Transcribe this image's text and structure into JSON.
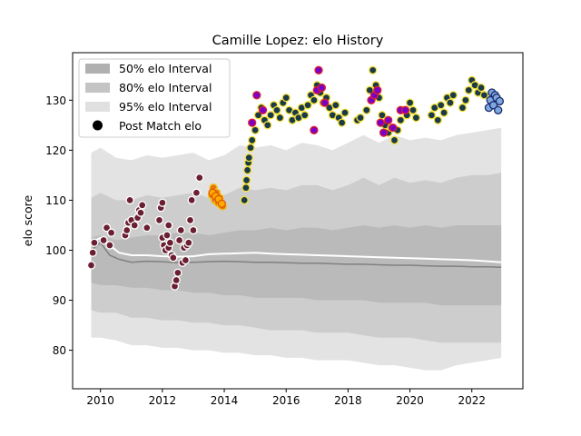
{
  "chart_data": {
    "type": "scatter",
    "title": "Camille Lopez: elo History",
    "xlabel": "",
    "ylabel": "elo score",
    "xlim": [
      2009.1,
      2023.65
    ],
    "ylim": [
      72.3,
      139.5
    ],
    "xticks": [
      2010,
      2012,
      2014,
      2016,
      2018,
      2020,
      2022
    ],
    "yticks": [
      80,
      90,
      100,
      110,
      120,
      130
    ],
    "grid": false,
    "legend": {
      "placement": "top-left",
      "entries": [
        "50% elo Interval",
        "80% elo Interval",
        "95% elo Interval",
        "Post Match elo"
      ]
    },
    "bands": {
      "x": [
        2009.7,
        2010.0,
        2010.5,
        2011.0,
        2011.5,
        2012.0,
        2012.5,
        2013.0,
        2013.5,
        2014.0,
        2014.5,
        2015.0,
        2015.5,
        2016.0,
        2016.5,
        2017.0,
        2017.5,
        2018.0,
        2018.5,
        2019.0,
        2019.5,
        2020.0,
        2020.5,
        2021.0,
        2021.5,
        2022.0,
        2022.5,
        2022.95
      ],
      "p95_upper": [
        119.5,
        120.5,
        118.5,
        118.0,
        119.0,
        118.5,
        119.0,
        119.5,
        118.0,
        119.0,
        121.0,
        120.5,
        121.0,
        120.0,
        121.5,
        121.0,
        120.0,
        121.5,
        123.0,
        121.5,
        123.0,
        122.0,
        122.5,
        122.0,
        123.0,
        123.5,
        124.0,
        124.5
      ],
      "p80_upper": [
        110.5,
        111.5,
        110.0,
        110.0,
        111.0,
        110.5,
        111.0,
        111.5,
        110.5,
        111.0,
        112.5,
        112.0,
        112.5,
        112.0,
        113.0,
        113.0,
        112.0,
        113.0,
        114.5,
        113.0,
        114.5,
        113.5,
        114.0,
        113.5,
        114.5,
        115.0,
        115.0,
        115.5
      ],
      "p50_upper": [
        102.5,
        103.0,
        102.0,
        102.5,
        103.0,
        103.0,
        103.5,
        103.5,
        103.0,
        103.5,
        104.0,
        104.0,
        104.5,
        104.0,
        104.5,
        104.5,
        104.0,
        104.5,
        105.0,
        104.5,
        105.0,
        104.5,
        105.0,
        104.5,
        105.0,
        105.0,
        105.0,
        105.0
      ],
      "p50_lower": [
        93.5,
        93.0,
        93.0,
        92.5,
        92.5,
        92.0,
        92.0,
        91.5,
        91.5,
        91.0,
        91.0,
        90.5,
        90.5,
        90.5,
        90.5,
        90.0,
        90.0,
        90.0,
        90.0,
        89.5,
        89.5,
        89.5,
        89.5,
        89.0,
        89.0,
        89.0,
        89.0,
        89.0
      ],
      "p80_lower": [
        88.0,
        87.5,
        87.5,
        86.5,
        86.5,
        86.0,
        86.0,
        85.5,
        85.5,
        85.0,
        85.0,
        84.5,
        84.0,
        84.0,
        84.0,
        83.5,
        83.5,
        83.5,
        83.0,
        82.5,
        82.5,
        82.5,
        82.0,
        81.5,
        81.5,
        81.5,
        81.5,
        81.5
      ],
      "p95_lower": [
        82.5,
        82.5,
        82.0,
        81.0,
        81.0,
        80.5,
        80.5,
        80.0,
        80.0,
        79.5,
        79.5,
        79.0,
        79.0,
        78.5,
        78.5,
        78.0,
        78.0,
        78.0,
        77.5,
        77.0,
        77.0,
        76.5,
        76.0,
        76.0,
        77.0,
        77.5,
        78.0,
        78.5
      ]
    },
    "lines": {
      "mean": {
        "color": "#ffffff",
        "x": [
          2009.7,
          2010.0,
          2010.3,
          2010.6,
          2011.0,
          2011.5,
          2012.0,
          2012.5,
          2013.0,
          2013.5,
          2014.0,
          2014.5,
          2015.0,
          2015.5,
          2016.0,
          2016.5,
          2017.0,
          2017.5,
          2018.0,
          2018.5,
          2019.0,
          2019.5,
          2020.0,
          2020.5,
          2021.0,
          2021.5,
          2022.0,
          2022.5,
          2022.95
        ],
        "y": [
          101.5,
          102.5,
          101.0,
          99.5,
          99.0,
          99.0,
          98.8,
          98.7,
          98.8,
          99.2,
          99.3,
          99.4,
          99.5,
          99.3,
          99.2,
          99.1,
          99.0,
          98.9,
          98.8,
          98.7,
          98.6,
          98.5,
          98.4,
          98.3,
          98.2,
          98.1,
          98.0,
          97.8,
          97.6
        ]
      },
      "median": {
        "color": "#808080",
        "x": [
          2009.7,
          2010.0,
          2010.3,
          2010.6,
          2011.0,
          2011.5,
          2012.0,
          2012.5,
          2013.0,
          2013.5,
          2014.0,
          2014.5,
          2015.0,
          2015.5,
          2016.0,
          2016.5,
          2017.0,
          2017.5,
          2018.0,
          2018.5,
          2019.0,
          2019.5,
          2020.0,
          2020.5,
          2021.0,
          2021.5,
          2022.0,
          2022.5,
          2022.95
        ],
        "y": [
          100.0,
          101.5,
          99.0,
          98.2,
          97.6,
          97.8,
          97.7,
          97.5,
          97.6,
          97.7,
          97.8,
          97.7,
          97.6,
          97.6,
          97.5,
          97.4,
          97.4,
          97.3,
          97.2,
          97.2,
          97.1,
          97.0,
          97.0,
          96.9,
          96.8,
          96.8,
          96.7,
          96.7,
          96.6
        ]
      }
    },
    "series": [
      {
        "fill": "#6b1f32",
        "edge": "#ffffff",
        "x": [
          2009.7,
          2009.75,
          2009.8,
          2010.1,
          2010.2,
          2010.3,
          2010.35,
          2010.8,
          2010.85,
          2010.9,
          2010.95,
          2011.0,
          2011.1,
          2011.2,
          2011.25,
          2011.3,
          2011.35,
          2011.5,
          2011.9,
          2011.95,
          2012.0,
          2012.05,
          2012.1,
          2012.15,
          2012.2,
          2012.25,
          2012.3,
          2012.35,
          2012.4,
          2012.45,
          2012.5,
          2012.55,
          2012.6,
          2012.65,
          2012.7,
          2012.75,
          2012.8,
          2012.85,
          2012.9,
          2012.95,
          2013.0,
          2013.1,
          2013.2,
          2012.0,
          2012.2
        ],
        "y": [
          97.0,
          99.5,
          101.5,
          102.0,
          104.5,
          101.0,
          103.5,
          103.0,
          104.0,
          105.5,
          110.0,
          106.0,
          105.0,
          106.5,
          108.0,
          107.5,
          109.0,
          104.5,
          106.0,
          108.5,
          102.5,
          101.0,
          100.0,
          103.0,
          100.5,
          101.5,
          99.0,
          98.5,
          92.8,
          94.0,
          95.5,
          102.0,
          104.0,
          97.5,
          100.5,
          98.0,
          101.0,
          101.5,
          106.0,
          110.0,
          104.0,
          111.5,
          114.5,
          109.5,
          105.0
        ]
      },
      {
        "fill": "#e87411",
        "edge": "#f2c318",
        "x": [
          2013.6,
          2013.65,
          2013.7,
          2013.75,
          2013.8,
          2013.85,
          2013.9,
          2013.95
        ],
        "y": [
          111.0,
          112.5,
          110.0,
          111.5,
          109.5,
          110.5,
          109.0,
          108.8
        ]
      },
      {
        "fill": "#ffaa00",
        "edge": "#e05800",
        "x": [
          2013.62,
          2013.72,
          2013.82,
          2013.92
        ],
        "y": [
          111.5,
          110.8,
          110.2,
          109.3
        ]
      },
      {
        "fill": "#1a3a4a",
        "edge": "#f5e23a",
        "x": [
          2014.65,
          2014.7,
          2014.72,
          2014.75,
          2014.78,
          2014.8,
          2014.85,
          2014.9,
          2015.0,
          2015.1,
          2015.2,
          2015.3,
          2015.4,
          2015.5,
          2015.6,
          2015.7,
          2015.8,
          2015.9,
          2016.0,
          2016.1,
          2016.2,
          2016.3,
          2016.4,
          2016.5,
          2016.6,
          2016.7,
          2016.8,
          2016.9,
          2017.0,
          2017.1,
          2017.2,
          2017.3,
          2017.4,
          2017.5,
          2017.6,
          2017.7,
          2017.8,
          2017.9,
          2018.3,
          2018.4,
          2018.6,
          2018.7,
          2018.8,
          2018.9,
          2019.0,
          2019.1,
          2019.2,
          2019.3,
          2019.4,
          2019.5,
          2019.6,
          2019.7,
          2019.8,
          2019.9,
          2020.0,
          2020.1,
          2020.2,
          2020.7,
          2020.8,
          2020.9,
          2021.0,
          2021.1,
          2021.2,
          2021.3,
          2021.4,
          2021.7,
          2021.8,
          2021.9,
          2022.0,
          2022.1,
          2022.2,
          2022.3,
          2022.4
        ],
        "y": [
          110.0,
          112.5,
          114.0,
          116.0,
          117.5,
          118.5,
          120.5,
          122.0,
          124.0,
          127.0,
          128.5,
          126.0,
          125.0,
          127.0,
          129.0,
          128.0,
          126.5,
          129.5,
          130.5,
          128.0,
          126.0,
          127.5,
          126.5,
          128.5,
          127.0,
          129.0,
          131.0,
          130.0,
          133.0,
          131.5,
          129.5,
          130.5,
          128.5,
          127.0,
          129.0,
          126.5,
          125.5,
          127.5,
          126.0,
          126.5,
          128.0,
          132.0,
          136.0,
          133.0,
          130.5,
          127.0,
          125.0,
          123.5,
          124.5,
          122.0,
          124.0,
          126.0,
          128.0,
          127.0,
          129.5,
          128.0,
          126.5,
          127.0,
          128.5,
          126.0,
          129.0,
          127.5,
          130.5,
          129.5,
          131.0,
          128.5,
          130.0,
          132.0,
          134.0,
          133.0,
          131.5,
          132.5,
          131.0
        ]
      },
      {
        "fill": "#7a00c8",
        "edge": "#e0202a",
        "x": [
          2014.9,
          2015.05,
          2015.25,
          2016.9,
          2017.0,
          2017.05,
          2017.15,
          2017.25,
          2018.75,
          2018.85,
          2018.95,
          2019.05,
          2019.15,
          2019.3,
          2019.45,
          2019.7,
          2019.85
        ],
        "y": [
          125.5,
          131.0,
          128.0,
          124.0,
          132.0,
          136.0,
          132.5,
          129.5,
          130.0,
          131.0,
          132.0,
          125.5,
          123.5,
          126.0,
          124.5,
          128.0,
          128.0
        ]
      },
      {
        "fill": "#7fa8e0",
        "edge": "#1a2a6c",
        "x": [
          2022.55,
          2022.6,
          2022.65,
          2022.7,
          2022.75,
          2022.8,
          2022.85,
          2022.9
        ],
        "y": [
          128.5,
          130.0,
          131.5,
          129.0,
          131.0,
          130.5,
          128.0,
          129.8
        ]
      }
    ]
  }
}
